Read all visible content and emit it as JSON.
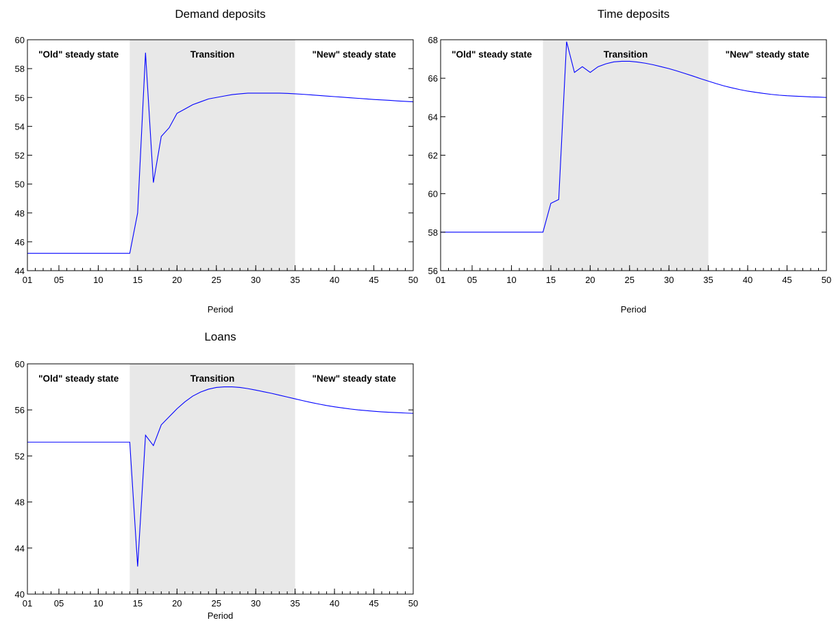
{
  "chart_data": [
    {
      "type": "line",
      "title": "Demand deposits",
      "xlabel": "Period",
      "ylabel": "",
      "ylim": [
        44,
        60
      ],
      "yticks": [
        "44",
        "46",
        "48",
        "50",
        "52",
        "54",
        "56",
        "58",
        "60"
      ],
      "xlim": [
        1,
        50
      ],
      "xticks": [
        "01",
        "05",
        "10",
        "15",
        "20",
        "25",
        "30",
        "35",
        "40",
        "45",
        "50"
      ],
      "regions": [
        {
          "label": "\"Old\" steady state",
          "from": 1,
          "to": 14,
          "shaded": false
        },
        {
          "label": "Transition",
          "from": 14,
          "to": 35,
          "shaded": true
        },
        {
          "label": "\"New\" steady state",
          "from": 35,
          "to": 50,
          "shaded": false
        }
      ],
      "series": [
        {
          "color": "#0000ff",
          "x": [
            1,
            14,
            15,
            16,
            17,
            18,
            19,
            20,
            21,
            22,
            23,
            24,
            25,
            26,
            27,
            28,
            29,
            30,
            31,
            32,
            33,
            34,
            35,
            36,
            37,
            38,
            39,
            40,
            41,
            42,
            43,
            44,
            45,
            46,
            47,
            48,
            49,
            50
          ],
          "y": [
            45.2,
            45.2,
            48.0,
            59.1,
            50.1,
            53.3,
            53.9,
            54.9,
            55.2,
            55.5,
            55.7,
            55.9,
            56.0,
            56.1,
            56.2,
            56.25,
            56.3,
            56.3,
            56.3,
            56.3,
            56.3,
            56.28,
            56.25,
            56.22,
            56.18,
            56.14,
            56.1,
            56.06,
            56.02,
            55.98,
            55.94,
            55.9,
            55.86,
            55.83,
            55.8,
            55.76,
            55.73,
            55.7
          ]
        }
      ],
      "grid": false
    },
    {
      "type": "line",
      "title": "Time deposits",
      "xlabel": "Period",
      "ylabel": "",
      "ylim": [
        56,
        68
      ],
      "yticks": [
        "56",
        "58",
        "60",
        "62",
        "64",
        "66",
        "68"
      ],
      "xlim": [
        1,
        50
      ],
      "xticks": [
        "01",
        "05",
        "10",
        "15",
        "20",
        "25",
        "30",
        "35",
        "40",
        "45",
        "50"
      ],
      "regions": [
        {
          "label": "\"Old\" steady state",
          "from": 1,
          "to": 14,
          "shaded": false
        },
        {
          "label": "Transition",
          "from": 14,
          "to": 35,
          "shaded": true
        },
        {
          "label": "\"New\" steady state",
          "from": 35,
          "to": 50,
          "shaded": false
        }
      ],
      "series": [
        {
          "color": "#0000ff",
          "x": [
            1,
            14,
            15,
            16,
            17,
            18,
            19,
            20,
            21,
            22,
            23,
            24,
            25,
            26,
            27,
            28,
            29,
            30,
            31,
            32,
            33,
            34,
            35,
            36,
            37,
            38,
            39,
            40,
            41,
            42,
            43,
            44,
            45,
            46,
            47,
            48,
            49,
            50
          ],
          "y": [
            58.0,
            58.0,
            59.5,
            59.7,
            67.9,
            66.3,
            66.6,
            66.3,
            66.6,
            66.75,
            66.85,
            66.88,
            66.88,
            66.84,
            66.78,
            66.7,
            66.6,
            66.5,
            66.38,
            66.25,
            66.12,
            65.98,
            65.85,
            65.72,
            65.6,
            65.5,
            65.41,
            65.33,
            65.27,
            65.21,
            65.16,
            65.12,
            65.09,
            65.07,
            65.05,
            65.03,
            65.02,
            65.0
          ]
        }
      ],
      "grid": false
    },
    {
      "type": "line",
      "title": "Loans",
      "xlabel": "Period",
      "ylabel": "",
      "ylim": [
        40,
        60
      ],
      "yticks": [
        "40",
        "44",
        "48",
        "52",
        "56",
        "60"
      ],
      "xlim": [
        1,
        50
      ],
      "xticks": [
        "01",
        "05",
        "10",
        "15",
        "20",
        "25",
        "30",
        "35",
        "40",
        "45",
        "50"
      ],
      "regions": [
        {
          "label": "\"Old\" steady state",
          "from": 1,
          "to": 14,
          "shaded": false
        },
        {
          "label": "Transition",
          "from": 14,
          "to": 35,
          "shaded": true
        },
        {
          "label": "\"New\" steady state",
          "from": 35,
          "to": 50,
          "shaded": false
        }
      ],
      "series": [
        {
          "color": "#0000ff",
          "x": [
            1,
            14,
            15,
            16,
            17,
            18,
            19,
            20,
            21,
            22,
            23,
            24,
            25,
            26,
            27,
            28,
            29,
            30,
            31,
            32,
            33,
            34,
            35,
            36,
            37,
            38,
            39,
            40,
            41,
            42,
            43,
            44,
            45,
            46,
            47,
            48,
            49,
            50
          ],
          "y": [
            53.2,
            53.2,
            42.4,
            53.8,
            52.9,
            54.7,
            55.4,
            56.1,
            56.7,
            57.2,
            57.55,
            57.8,
            57.95,
            58.0,
            58.0,
            57.95,
            57.85,
            57.72,
            57.58,
            57.44,
            57.28,
            57.12,
            56.96,
            56.8,
            56.65,
            56.51,
            56.38,
            56.27,
            56.17,
            56.08,
            56.0,
            55.94,
            55.88,
            55.83,
            55.79,
            55.76,
            55.73,
            55.7
          ]
        }
      ],
      "grid": false
    }
  ]
}
